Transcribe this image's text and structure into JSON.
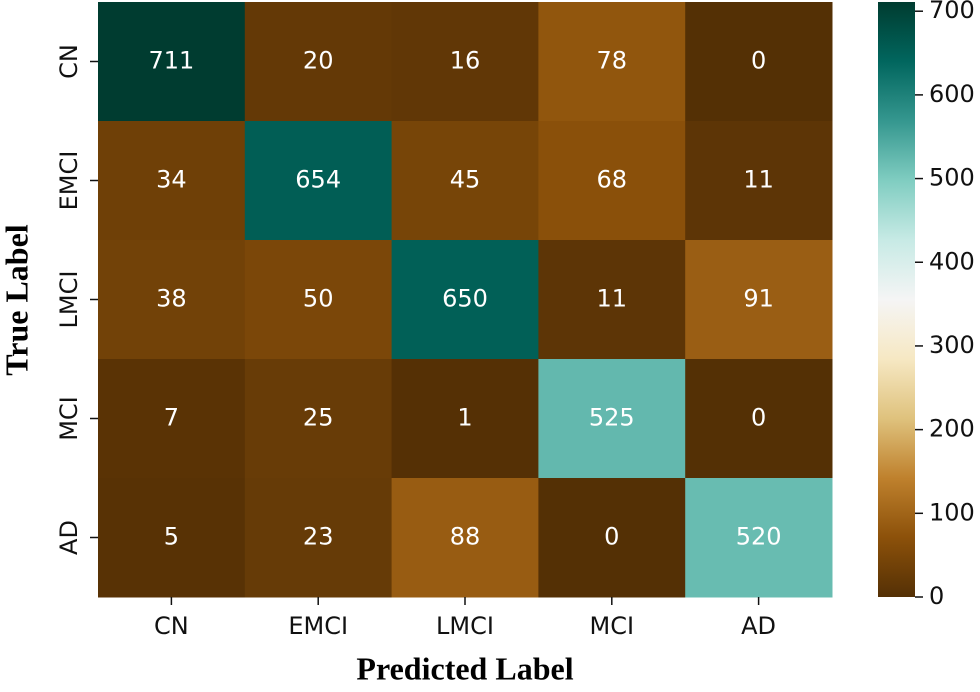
{
  "chart_data": {
    "type": "heatmap",
    "x_label": "Predicted Label",
    "y_label": "True Label",
    "x_categories": [
      "CN",
      "EMCI",
      "LMCI",
      "MCI",
      "AD"
    ],
    "y_categories": [
      "CN",
      "EMCI",
      "LMCI",
      "MCI",
      "AD"
    ],
    "z": [
      [
        711,
        20,
        16,
        78,
        0
      ],
      [
        34,
        654,
        45,
        68,
        11
      ],
      [
        38,
        50,
        650,
        11,
        91
      ],
      [
        7,
        25,
        1,
        525,
        0
      ],
      [
        5,
        23,
        88,
        0,
        520
      ]
    ],
    "colormap": "BrBG",
    "clim": [
      0,
      711
    ],
    "colorbar_ticks": [
      0,
      100,
      200,
      300,
      400,
      500,
      600,
      700
    ]
  }
}
